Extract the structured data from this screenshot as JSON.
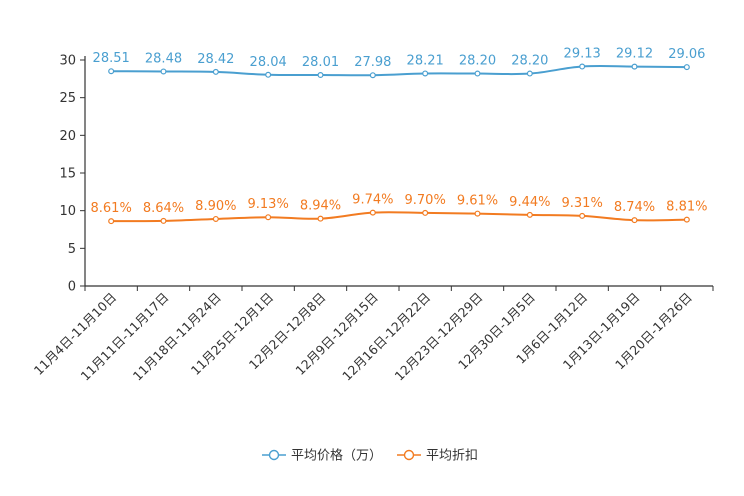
{
  "chart_data": {
    "type": "line",
    "categories": [
      "11月4日-11月10日",
      "11月11日-11月17日",
      "11月18日-11月24日",
      "11月25日-12月1日",
      "12月2日-12月8日",
      "12月9日-12月15日",
      "12月16日-12月22日",
      "12月23日-12月29日",
      "12月30日-1月5日",
      "1月6日-1月12日",
      "1月13日-1月19日",
      "1月20日-1月26日"
    ],
    "ylim": [
      0,
      30
    ],
    "yticks": [
      0,
      5,
      10,
      15,
      20,
      25,
      30
    ],
    "series": [
      {
        "name": "平均价格（万）",
        "color": "#4a9fd0",
        "values": [
          28.51,
          28.48,
          28.42,
          28.04,
          28.01,
          27.98,
          28.21,
          28.2,
          28.2,
          29.13,
          29.12,
          29.06
        ],
        "labels": [
          "28.51",
          "28.48",
          "28.42",
          "28.04",
          "28.01",
          "27.98",
          "28.21",
          "28.20",
          "28.20",
          "29.13",
          "29.12",
          "29.06"
        ]
      },
      {
        "name": "平均折扣",
        "color": "#f27b21",
        "values": [
          8.61,
          8.64,
          8.9,
          9.13,
          8.94,
          9.74,
          9.7,
          9.61,
          9.44,
          9.31,
          8.74,
          8.81
        ],
        "labels": [
          "8.61%",
          "8.64%",
          "8.90%",
          "9.13%",
          "8.94%",
          "9.74%",
          "9.70%",
          "9.61%",
          "9.44%",
          "9.31%",
          "8.74%",
          "8.81%"
        ]
      }
    ],
    "legend_position": "bottom-center"
  }
}
